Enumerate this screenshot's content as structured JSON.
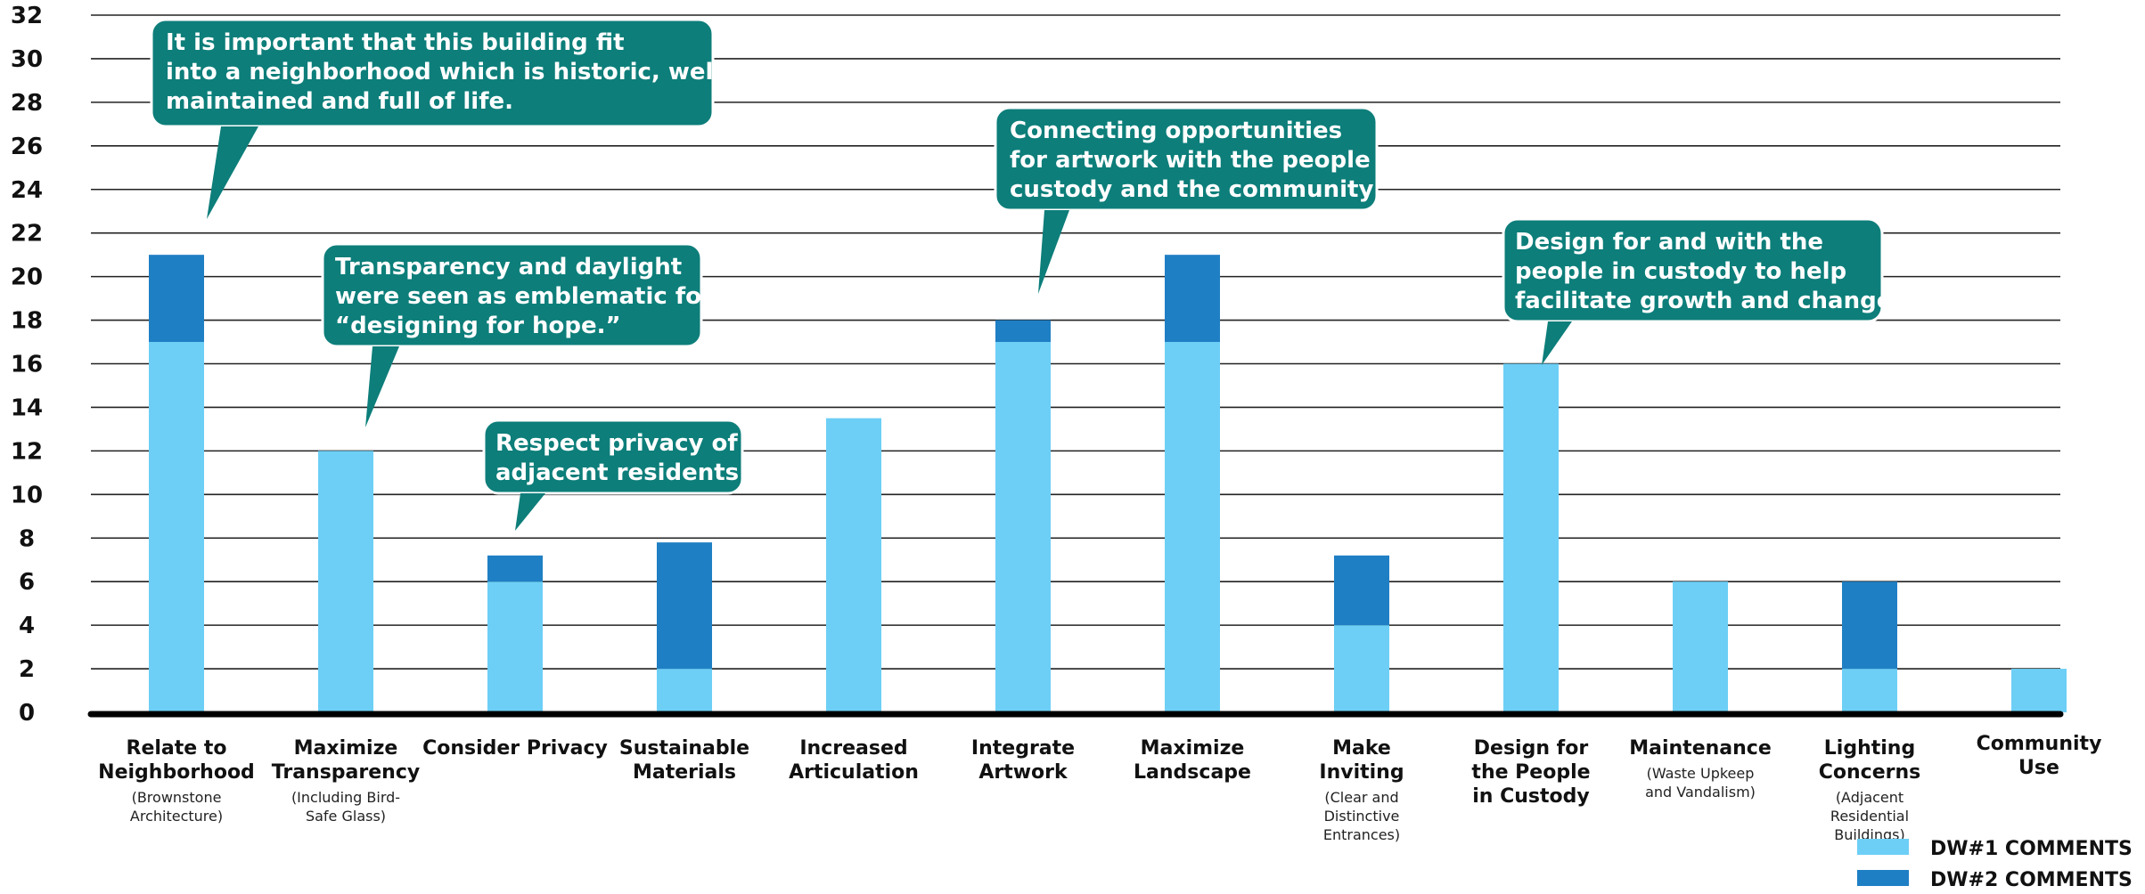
{
  "chart_data": {
    "type": "bar",
    "stacked": true,
    "ylim": [
      0,
      32
    ],
    "yticks": [
      0,
      2,
      4,
      6,
      8,
      10,
      12,
      14,
      16,
      18,
      20,
      22,
      24,
      26,
      28,
      30,
      32
    ],
    "grid": true,
    "legend_position": "bottom-right",
    "categories": [
      {
        "title": [
          "Relate to",
          "Neighborhood"
        ],
        "note": [
          "(Brownstone",
          "Architecture)"
        ]
      },
      {
        "title": [
          "Maximize",
          "Transparency"
        ],
        "note": [
          "(Including Bird-",
          "Safe Glass)"
        ]
      },
      {
        "title": [
          "Consider Privacy"
        ],
        "note": []
      },
      {
        "title": [
          "Sustainable",
          "Materials"
        ],
        "note": []
      },
      {
        "title": [
          "Increased",
          "Articulation"
        ],
        "note": []
      },
      {
        "title": [
          "Integrate",
          "Artwork"
        ],
        "note": []
      },
      {
        "title": [
          "Maximize",
          "Landscape"
        ],
        "note": []
      },
      {
        "title": [
          "Make",
          "Inviting"
        ],
        "note": [
          "(Clear and",
          "Distinctive",
          "Entrances)"
        ]
      },
      {
        "title": [
          "Design for",
          "the People",
          "in Custody"
        ],
        "note": []
      },
      {
        "title": [
          "Maintenance"
        ],
        "note": [
          "(Waste Upkeep",
          "and Vandalism)"
        ]
      },
      {
        "title": [
          "Lighting",
          "Concerns"
        ],
        "note": [
          "(Adjacent",
          "Residential",
          "Buildings)"
        ]
      },
      {
        "title": [
          "Community",
          "Use"
        ],
        "note": []
      }
    ],
    "series": [
      {
        "name": "DW#1 COMMENTS",
        "color": "#6dcff6",
        "values": [
          17,
          12,
          6,
          2,
          13.5,
          17,
          17,
          4,
          16,
          6,
          2,
          2
        ]
      },
      {
        "name": "DW#2 COMMENTS",
        "color": "#1f7fc4",
        "values": [
          4,
          0,
          1.2,
          5.8,
          0,
          1,
          4,
          3.2,
          0,
          0,
          4,
          0
        ]
      }
    ],
    "callouts": [
      {
        "lines": [
          "It is important that this building fit",
          "into a neighborhood which is historic, well",
          "maintained and full of life."
        ],
        "category": 0
      },
      {
        "lines": [
          "Transparency and daylight",
          "were seen as emblematic for",
          "“designing for hope.”"
        ],
        "category": 1
      },
      {
        "lines": [
          "Respect privacy of",
          "adjacent residents"
        ],
        "category": 2
      },
      {
        "lines": [
          "Connecting opportunities",
          "for artwork with the people in",
          "custody and the community"
        ],
        "category": 5
      },
      {
        "lines": [
          "Design for and with the",
          "people in custody to help",
          "facilitate growth and change."
        ],
        "category": 8
      }
    ],
    "callout_color": "#0d7e7a"
  }
}
